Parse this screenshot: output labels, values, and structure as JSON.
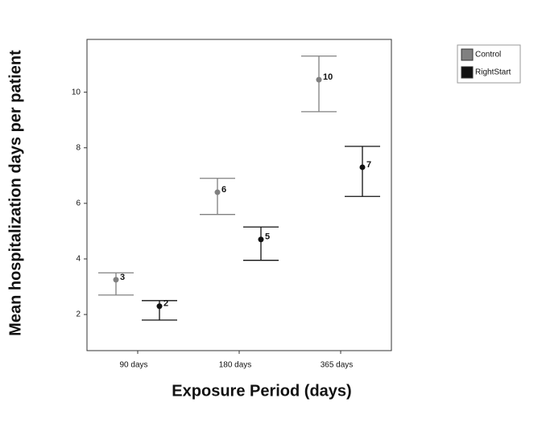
{
  "chart_data": {
    "type": "errorbar",
    "y_label": "Mean hospitalization days per patient",
    "x_label": "Exposure Period (days)",
    "categories": [
      "90 days",
      "180 days",
      "365 days"
    ],
    "series": [
      {
        "name": "Control",
        "color": "#808080",
        "values": [
          3.25,
          6.4,
          10.45
        ],
        "value_labels": [
          "3",
          "6",
          "10"
        ],
        "lower": [
          2.7,
          5.6,
          9.3
        ],
        "upper": [
          3.5,
          6.9,
          11.3
        ]
      },
      {
        "name": "RightStart",
        "color": "#111111",
        "values": [
          2.3,
          4.7,
          7.3
        ],
        "value_labels": [
          "2",
          "5",
          "7"
        ],
        "lower": [
          1.8,
          3.95,
          6.25
        ],
        "upper": [
          2.5,
          5.15,
          8.05
        ]
      }
    ],
    "ylim": [
      0.7,
      11.9
    ],
    "yticks": [
      2,
      4,
      6,
      8,
      10
    ],
    "legend": "top-right outside"
  }
}
